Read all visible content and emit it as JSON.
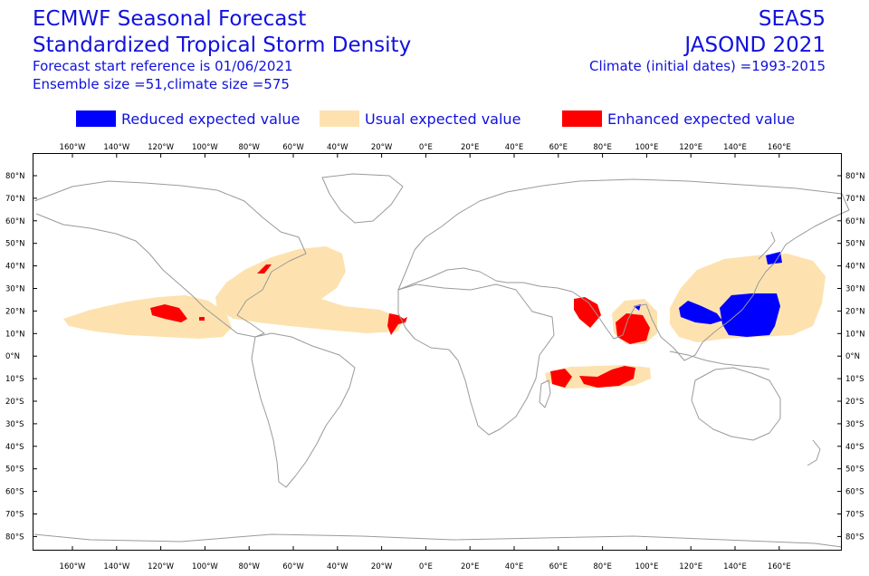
{
  "header": {
    "title_line1": "ECMWF Seasonal Forecast",
    "title_line2": "Standardized Tropical Storm Density",
    "forecast_start": "Forecast start reference is 01/06/2021",
    "ensemble": "Ensemble size =51,climate size =575",
    "system": "SEAS5",
    "period": "JASOND 2021",
    "climate": "Climate (initial dates) =1993-2015"
  },
  "legend": [
    {
      "label": "Reduced expected value",
      "color": "#0000ff"
    },
    {
      "label": "Usual expected value",
      "color": "#fde2b0"
    },
    {
      "label": "Enhanced expected value",
      "color": "#ff0000"
    }
  ],
  "map": {
    "lon_ticks": [
      "160°W",
      "140°W",
      "120°W",
      "100°W",
      "80°W",
      "60°W",
      "40°W",
      "20°W",
      "0°E",
      "20°E",
      "40°E",
      "60°E",
      "80°E",
      "100°E",
      "120°E",
      "140°E",
      "160°E"
    ],
    "lat_ticks": [
      "80°N",
      "70°N",
      "60°N",
      "50°N",
      "40°N",
      "30°N",
      "20°N",
      "10°N",
      "0°N",
      "10°S",
      "20°S",
      "30°S",
      "40°S",
      "50°S",
      "60°S",
      "70°S",
      "80°S"
    ],
    "colors": {
      "reduced": "#0000ff",
      "usual": "#fde2b0",
      "enhanced": "#ff0000",
      "coast": "#9a9a9a",
      "frame": "#000000"
    }
  }
}
